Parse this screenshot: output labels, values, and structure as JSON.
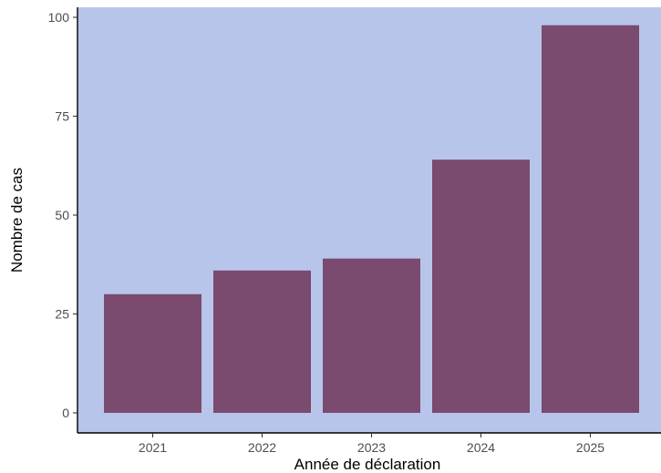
{
  "chart_data": {
    "type": "bar",
    "title": "",
    "xlabel": "Année de déclaration",
    "ylabel": "Nombre de cas",
    "categories": [
      "2021",
      "2022",
      "2023",
      "2024",
      "2025"
    ],
    "values": [
      30,
      36,
      39,
      64,
      98
    ],
    "ylim": [
      0,
      100
    ],
    "yticks": [
      0,
      25,
      50,
      75,
      100
    ],
    "grid": false,
    "legend": "none",
    "colors": {
      "panel_background": "#b8c5ea",
      "bar_fill": "#7a4a6f",
      "axis_line": "#000000",
      "tick_text": "#4d4d4d"
    }
  }
}
